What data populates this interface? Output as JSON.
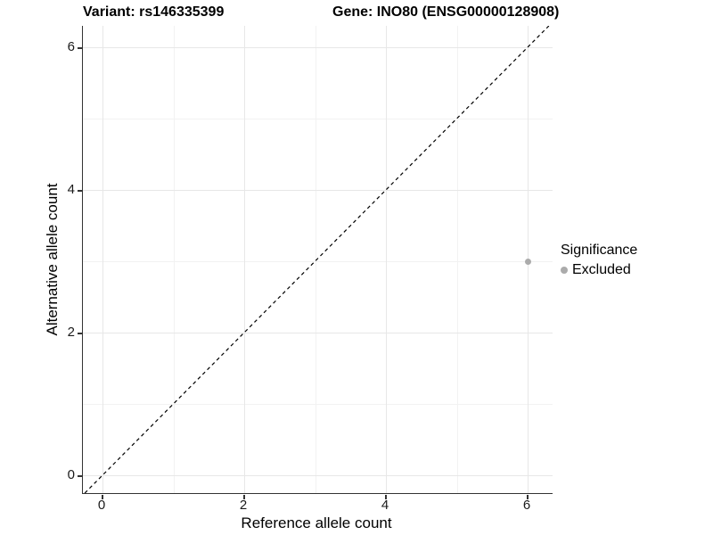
{
  "title_left": "Variant: rs146335399",
  "title_right": "Gene: INO80 (ENSG00000128908)",
  "legend": {
    "title": "Significance",
    "items": [
      {
        "label": "Excluded",
        "color": "#ababab",
        "marker": "circle"
      }
    ]
  },
  "chart_data": {
    "type": "scatter",
    "title": "Variant: rs146335399   Gene: INO80 (ENSG00000128908)",
    "xlabel": "Reference allele count",
    "ylabel": "Alternative allele count",
    "xlim": [
      -0.28,
      6.35
    ],
    "ylim": [
      -0.25,
      6.3
    ],
    "x_ticks": [
      0,
      2,
      4,
      6
    ],
    "y_ticks": [
      0,
      2,
      4,
      6
    ],
    "x_minor_ticks": [
      1,
      3,
      5
    ],
    "y_minor_ticks": [
      1,
      3,
      5
    ],
    "grid": true,
    "legend_position": "right",
    "series": [
      {
        "name": "Excluded",
        "color": "#ababab",
        "points": [
          {
            "x": 6,
            "y": 3
          }
        ]
      }
    ],
    "reference_line": {
      "slope": 1,
      "intercept": 0,
      "style": "dashed",
      "color": "#000000"
    }
  },
  "colors": {
    "grid_major": "#e7e7e7",
    "grid_minor": "#f2f2f2",
    "axis_line": "#333333",
    "tick_text": "#1a1a1a",
    "background": "#ffffff"
  }
}
